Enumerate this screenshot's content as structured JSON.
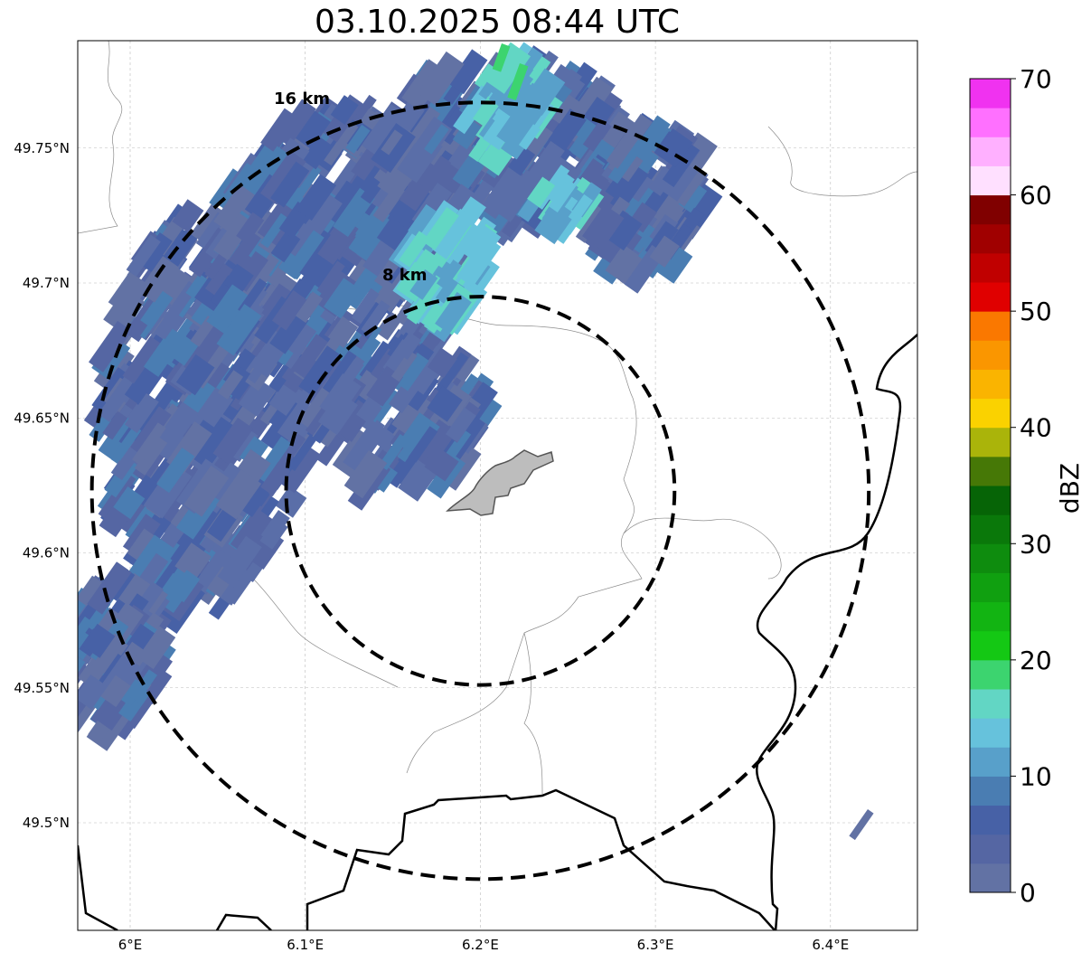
{
  "title": "03.10.2025 08:44 UTC",
  "map": {
    "lon_range": [
      5.97,
      6.45
    ],
    "lat_range": [
      49.46,
      49.79
    ],
    "center": {
      "lon": 6.2,
      "lat": 49.623
    },
    "x_ticks": [
      {
        "value": 6.0,
        "label": "6°E"
      },
      {
        "value": 6.1,
        "label": "6.1°E"
      },
      {
        "value": 6.2,
        "label": "6.2°E"
      },
      {
        "value": 6.3,
        "label": "6.3°E"
      },
      {
        "value": 6.4,
        "label": "6.4°E"
      }
    ],
    "y_ticks": [
      {
        "value": 49.75,
        "label": "49.75°N"
      },
      {
        "value": 49.7,
        "label": "49.7°N"
      },
      {
        "value": 49.65,
        "label": "49.65°N"
      },
      {
        "value": 49.6,
        "label": "49.6°N"
      },
      {
        "value": 49.55,
        "label": "49.55°N"
      },
      {
        "value": 49.5,
        "label": "49.5°N"
      }
    ],
    "grid": true,
    "rings": [
      {
        "label": "8 km",
        "radius_km": 8
      },
      {
        "label": "16 km",
        "radius_km": 16
      }
    ]
  },
  "colorbar": {
    "label": "dBZ",
    "min": 0,
    "max": 70,
    "tick_values": [
      0,
      10,
      20,
      30,
      40,
      50,
      60,
      70
    ],
    "colors": [
      "#6272a4",
      "#5566a3",
      "#4761a6",
      "#4a7db2",
      "#58a0ca",
      "#66c2dc",
      "#62d6c4",
      "#3cd46f",
      "#14c814",
      "#12b412",
      "#10a010",
      "#0e8c0e",
      "#0a780a",
      "#066406",
      "#467806",
      "#aab40a",
      "#fad200",
      "#fab400",
      "#fa9600",
      "#fa7800",
      "#e00000",
      "#c00000",
      "#a00000",
      "#800000",
      "#ffe0ff",
      "#ffb0ff",
      "#ff70ff",
      "#f032f0"
    ]
  }
}
